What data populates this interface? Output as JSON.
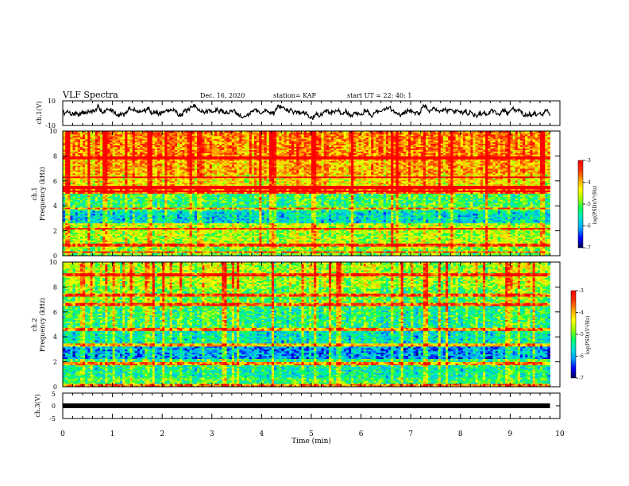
{
  "header": {
    "title": "VLF Spectra",
    "date": "Dec. 16, 2020",
    "station": "station= KAP",
    "start": "start  UT  =    22: 40: 1"
  },
  "chart_data": [
    {
      "type": "line",
      "panel": "ch1",
      "ylabel": "ch.1(V)",
      "ylim": [
        -10,
        10
      ],
      "y_ticks": [
        "10",
        "-10"
      ],
      "xlim": [
        0,
        10
      ],
      "data_end_min": 9.8,
      "color": "#000000",
      "series": [
        {
          "seed": 7,
          "base": 1.5,
          "spread": 3.0
        }
      ]
    },
    {
      "type": "heatmap",
      "panel": "ch1",
      "ylabel": "ch.1\nFrequency  (kHz)",
      "ylim": [
        0,
        10
      ],
      "y_ticks": [
        "0",
        "2",
        "4",
        "6",
        "8",
        "10"
      ],
      "xlim": [
        0,
        10
      ],
      "data_end_min": 9.8,
      "colorbar": {
        "label": "log(PSD)(V²/Hz)",
        "range": [
          -7,
          -3
        ],
        "ticks": [
          "-3",
          "-4",
          "-5",
          "-6",
          "-7"
        ]
      },
      "bands": [
        {
          "f": [
            0,
            0.5
          ],
          "level": -5.0
        },
        {
          "f": [
            0.5,
            1.0
          ],
          "level": -4.8
        },
        {
          "f": [
            1.0,
            2.0
          ],
          "level": -4.7
        },
        {
          "f": [
            2.0,
            2.6
          ],
          "level": -4.6
        },
        {
          "f": [
            2.6,
            3.6
          ],
          "level": -5.7
        },
        {
          "f": [
            3.6,
            5.0
          ],
          "level": -5.2
        },
        {
          "f": [
            5.0,
            5.6
          ],
          "level": -3.6
        },
        {
          "f": [
            5.6,
            6.5
          ],
          "level": -4.3
        },
        {
          "f": [
            6.5,
            8.0
          ],
          "level": -4.0
        },
        {
          "f": [
            8.0,
            10.0
          ],
          "level": -3.8
        }
      ],
      "line_freqs": [
        0.3,
        0.9,
        2.2,
        3.8,
        5.2,
        5.5,
        6.3,
        7.9
      ]
    },
    {
      "type": "heatmap",
      "panel": "ch2",
      "ylabel": "ch.2\nFrequency  (kHz)",
      "ylim": [
        0,
        10
      ],
      "y_ticks": [
        "0",
        "2",
        "4",
        "6",
        "8",
        "10"
      ],
      "xlim": [
        0,
        10
      ],
      "data_end_min": 9.8,
      "colorbar": {
        "label": "log(PSD)(V²/Hz)",
        "range": [
          -7,
          -3
        ],
        "ticks": [
          "-3",
          "-4",
          "-5",
          "-6",
          "-7"
        ]
      },
      "bands": [
        {
          "f": [
            0,
            0.8
          ],
          "level": -5.2
        },
        {
          "f": [
            0.8,
            1.6
          ],
          "level": -5.5
        },
        {
          "f": [
            1.6,
            2.2
          ],
          "level": -5.3
        },
        {
          "f": [
            2.2,
            3.3
          ],
          "level": -6.1
        },
        {
          "f": [
            3.3,
            4.5
          ],
          "level": -5.6
        },
        {
          "f": [
            4.5,
            6.5
          ],
          "level": -5.3
        },
        {
          "f": [
            6.5,
            8.0
          ],
          "level": -5.0
        },
        {
          "f": [
            8.0,
            10.0
          ],
          "level": -4.7
        }
      ],
      "line_freqs": [
        0.1,
        1.9,
        3.4,
        4.6,
        6.6,
        7.4,
        9.0
      ]
    },
    {
      "type": "line",
      "panel": "ch3",
      "ylabel": "ch.3(V)",
      "ylim": [
        -5,
        5
      ],
      "y_ticks": [
        "5",
        "0",
        "-5"
      ],
      "xlim": [
        0,
        10
      ],
      "data_end_min": 9.8,
      "value": 0,
      "color": "#000000"
    }
  ],
  "x_axis": {
    "label": "Time  (min)",
    "ticks": [
      "0",
      "1",
      "2",
      "3",
      "4",
      "5",
      "6",
      "7",
      "8",
      "9",
      "10"
    ]
  },
  "colormap": [
    "#000050",
    "#0000ff",
    "#00a0ff",
    "#00e0d0",
    "#00ff60",
    "#a0ff00",
    "#ffff00",
    "#ffa000",
    "#ff3000",
    "#ff0000",
    "#ffffff"
  ]
}
